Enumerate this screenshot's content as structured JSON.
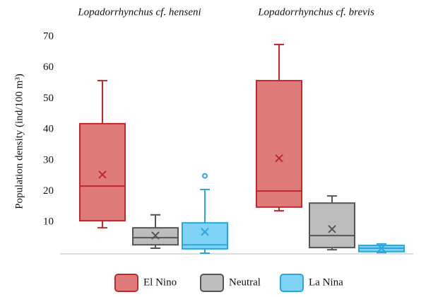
{
  "chart_data": {
    "type": "box",
    "categories": [
      "Lopadorrhynchus cf. henseni",
      "Lopadorrhynchus cf. brevis"
    ],
    "y_label": "Population density (ind/100 m³)",
    "ylim": [
      0,
      70
    ],
    "yticks": [
      10,
      20,
      30,
      40,
      50,
      60,
      70
    ],
    "legend": "bottom",
    "series": [
      {
        "name": "El Nino",
        "color": "#e07b7b",
        "edge_color": "#c0282d",
        "boxes": [
          {
            "min": 8.2,
            "q1": 10.5,
            "median": 21.7,
            "q3": 41.9,
            "max": 55.8,
            "mean": 25.4,
            "outliers": []
          },
          {
            "min": 13.7,
            "q1": 14.9,
            "median": 20.1,
            "q3": 55.8,
            "max": 67.5,
            "mean": 30.7,
            "outliers": []
          }
        ]
      },
      {
        "name": "Neutral",
        "color": "#bdbdbd",
        "edge_color": "#555555",
        "boxes": [
          {
            "min": 1.6,
            "q1": 2.7,
            "median": 5.0,
            "q3": 8.2,
            "max": 12.4,
            "mean": 5.7,
            "outliers": []
          },
          {
            "min": 1.1,
            "q1": 1.8,
            "median": 5.7,
            "q3": 16.2,
            "max": 18.5,
            "mean": 7.8,
            "outliers": []
          }
        ]
      },
      {
        "name": "La Nina",
        "color": "#7fd3f5",
        "edge_color": "#2aa7d8",
        "boxes": [
          {
            "min": 0,
            "q1": 1.4,
            "median": 2.7,
            "q3": 9.8,
            "max": 20.6,
            "mean": 6.9,
            "outliers": [
              25
            ]
          },
          {
            "min": 0.2,
            "q1": 0.5,
            "median": 1.6,
            "q3": 2.5,
            "max": 3,
            "mean": 1.6,
            "outliers": []
          }
        ]
      }
    ]
  }
}
